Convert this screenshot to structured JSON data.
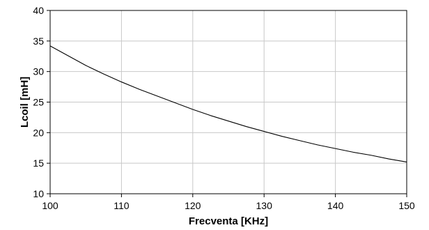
{
  "chart_data": {
    "type": "line",
    "title": "",
    "xlabel": "Frecventa  [KHz]",
    "ylabel": "Lcoil [mH]",
    "xlim": [
      100,
      150
    ],
    "ylim": [
      10,
      40
    ],
    "xticks": [
      100,
      110,
      120,
      130,
      140,
      150
    ],
    "yticks": [
      10,
      15,
      20,
      25,
      30,
      35,
      40
    ],
    "grid": true,
    "legend": "none",
    "series": [
      {
        "color": "#000000",
        "x": [
          100,
          102.5,
          105,
          107.5,
          110,
          112.5,
          115,
          117.5,
          120,
          122.5,
          125,
          127.5,
          130,
          132.5,
          135,
          137.5,
          140,
          142.5,
          145,
          147.5,
          150
        ],
        "y": [
          34.2,
          32.6,
          31.0,
          29.6,
          28.3,
          27.1,
          26.0,
          24.9,
          23.8,
          22.8,
          21.9,
          21.0,
          20.2,
          19.4,
          18.7,
          18.0,
          17.4,
          16.8,
          16.3,
          15.7,
          15.2
        ]
      }
    ]
  }
}
